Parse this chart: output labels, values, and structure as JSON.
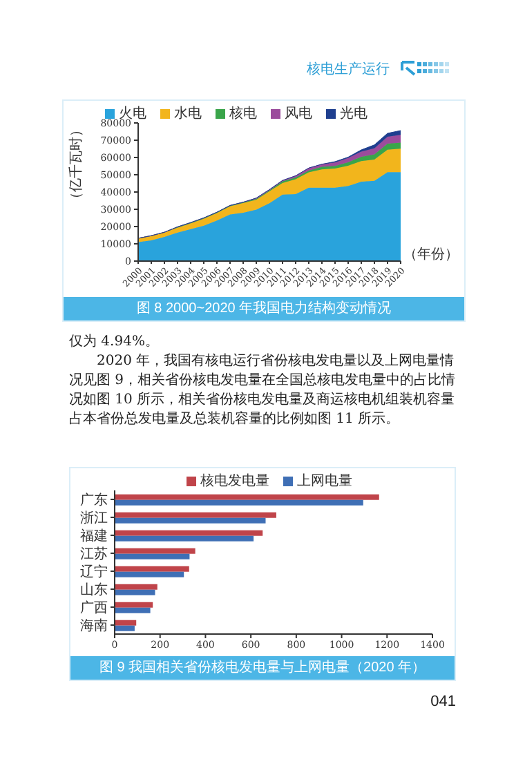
{
  "chart_data": [
    {
      "type": "area",
      "stacked": true,
      "title": "图 8  2000~2020 年我国电力结构变动情况",
      "annotations": [
        "核电生产运行"
      ],
      "xlabel": "（年份）",
      "ylabel": "（亿千瓦时）",
      "legend": "top",
      "grid": false,
      "categories": [
        "2000",
        "2001",
        "2002",
        "2003",
        "2004",
        "2005",
        "2006",
        "2007",
        "2008",
        "2009",
        "2010",
        "2011",
        "2012",
        "2013",
        "2014",
        "2015",
        "2016",
        "2017",
        "2018",
        "2019",
        "2020"
      ],
      "ylim": [
        0,
        80000
      ],
      "yticks": [
        0,
        10000,
        20000,
        30000,
        40000,
        50000,
        60000,
        70000,
        80000
      ],
      "series": [
        {
          "name": "火电",
          "color": "#29a3dc",
          "values": [
            11000,
            12000,
            14000,
            16500,
            18500,
            20500,
            23500,
            27000,
            28000,
            29800,
            33500,
            38500,
            38800,
            42500,
            42500,
            42500,
            43500,
            46000,
            46500,
            51500,
            51500
          ]
        },
        {
          "name": "水电",
          "color": "#f2b51c",
          "values": [
            2200,
            2700,
            2700,
            2800,
            3300,
            4000,
            4300,
            4700,
            5600,
            5700,
            6900,
            6700,
            8600,
            8900,
            10600,
            11100,
            11700,
            11900,
            12300,
            13000,
            13600
          ]
        },
        {
          "name": "核电",
          "color": "#3aa54a",
          "values": [
            0,
            0,
            0,
            500,
            500,
            500,
            500,
            500,
            500,
            500,
            500,
            1000,
            1000,
            1000,
            1500,
            1500,
            2000,
            2500,
            3000,
            3500,
            3500
          ]
        },
        {
          "name": "风电",
          "color": "#9b4c9c",
          "values": [
            0,
            0,
            0,
            0,
            0,
            0,
            0,
            0,
            0,
            500,
            500,
            500,
            1000,
            1500,
            1500,
            2000,
            2500,
            3000,
            3500,
            4000,
            4500
          ]
        },
        {
          "name": "光电",
          "color": "#1f3f8f",
          "values": [
            0,
            0,
            0,
            0,
            0,
            0,
            0,
            0,
            0,
            0,
            0,
            0,
            0,
            0,
            0,
            500,
            500,
            1000,
            2000,
            2000,
            2500
          ]
        }
      ]
    },
    {
      "type": "bar",
      "orientation": "horizontal",
      "title": "图 9  我国相关省份核电发电量与上网电量（2020 年）",
      "legend": "top left",
      "grid": false,
      "annotations": [
        "仅为 4.94%。",
        "2020 年，我国有核电运行省份核电发电量以及上网电量情况见图 9，相关省份核电发电量在全国总核电发电量中的占比情况如图 10 所示，相关省份核电发电量及商运核电机组装机容量占本省份总发电量及总装机容量的比例如图 11 所示。",
        "041"
      ],
      "categories": [
        "广东",
        "浙江",
        "福建",
        "江苏",
        "辽宁",
        "山东",
        "广西",
        "海南"
      ],
      "xlim": [
        0,
        1400
      ],
      "xticks": [
        0,
        200,
        400,
        600,
        800,
        1000,
        1200,
        1400
      ],
      "series": [
        {
          "name": "核电发电量",
          "color": "#c0444a",
          "values": [
            1165,
            712,
            652,
            355,
            328,
            188,
            168,
            95
          ]
        },
        {
          "name": "上网电量",
          "color": "#3f6fb5",
          "values": [
            1095,
            665,
            612,
            330,
            305,
            178,
            157,
            88
          ]
        }
      ]
    }
  ]
}
